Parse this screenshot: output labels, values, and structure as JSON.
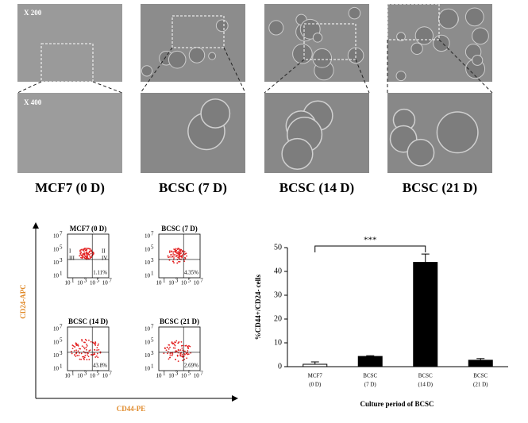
{
  "micrographs": {
    "magnifications": [
      "X 200",
      "X 400"
    ],
    "labels": [
      "MCF7 (0 D)",
      "BCSC (7 D)",
      "BCSC (14 D)",
      "BCSC (21 D)"
    ]
  },
  "flow": {
    "y_axis": "CD24-APC",
    "x_axis": "CD44-PE",
    "quadrants": [
      "I",
      "II",
      "III",
      "IV"
    ],
    "tick_base": "10",
    "tick_exponents": [
      "1",
      "3",
      "5",
      "7"
    ],
    "panels": [
      {
        "title": "MCF7 (0 D)",
        "percent": "1.11%"
      },
      {
        "title": "BCSC (7 D)",
        "percent": "4.35%"
      },
      {
        "title": "BCSC (14 D)",
        "percent": "43.8%"
      },
      {
        "title": "BCSC (21 D)",
        "percent": "2.69%"
      }
    ]
  },
  "chart_data": {
    "type": "bar",
    "y_label": "%CD44+/CD24- cells",
    "x_label": "Culture period of BCSC",
    "categories": [
      [
        "MCF7",
        "(0 D)"
      ],
      [
        "BCSC",
        "(7 D)"
      ],
      [
        "BCSC",
        "(14 D)"
      ],
      [
        "BCSC",
        "(21 D)"
      ]
    ],
    "values": [
      1,
      4.3,
      43.8,
      2.7
    ],
    "errors": [
      1,
      0.3,
      3.5,
      0.7
    ],
    "colors": [
      "#ffffff",
      "#000000",
      "#000000",
      "#000000"
    ],
    "ylim": [
      0,
      50
    ],
    "yticks": [
      0,
      10,
      20,
      30,
      40,
      50
    ],
    "annotation": "***"
  }
}
